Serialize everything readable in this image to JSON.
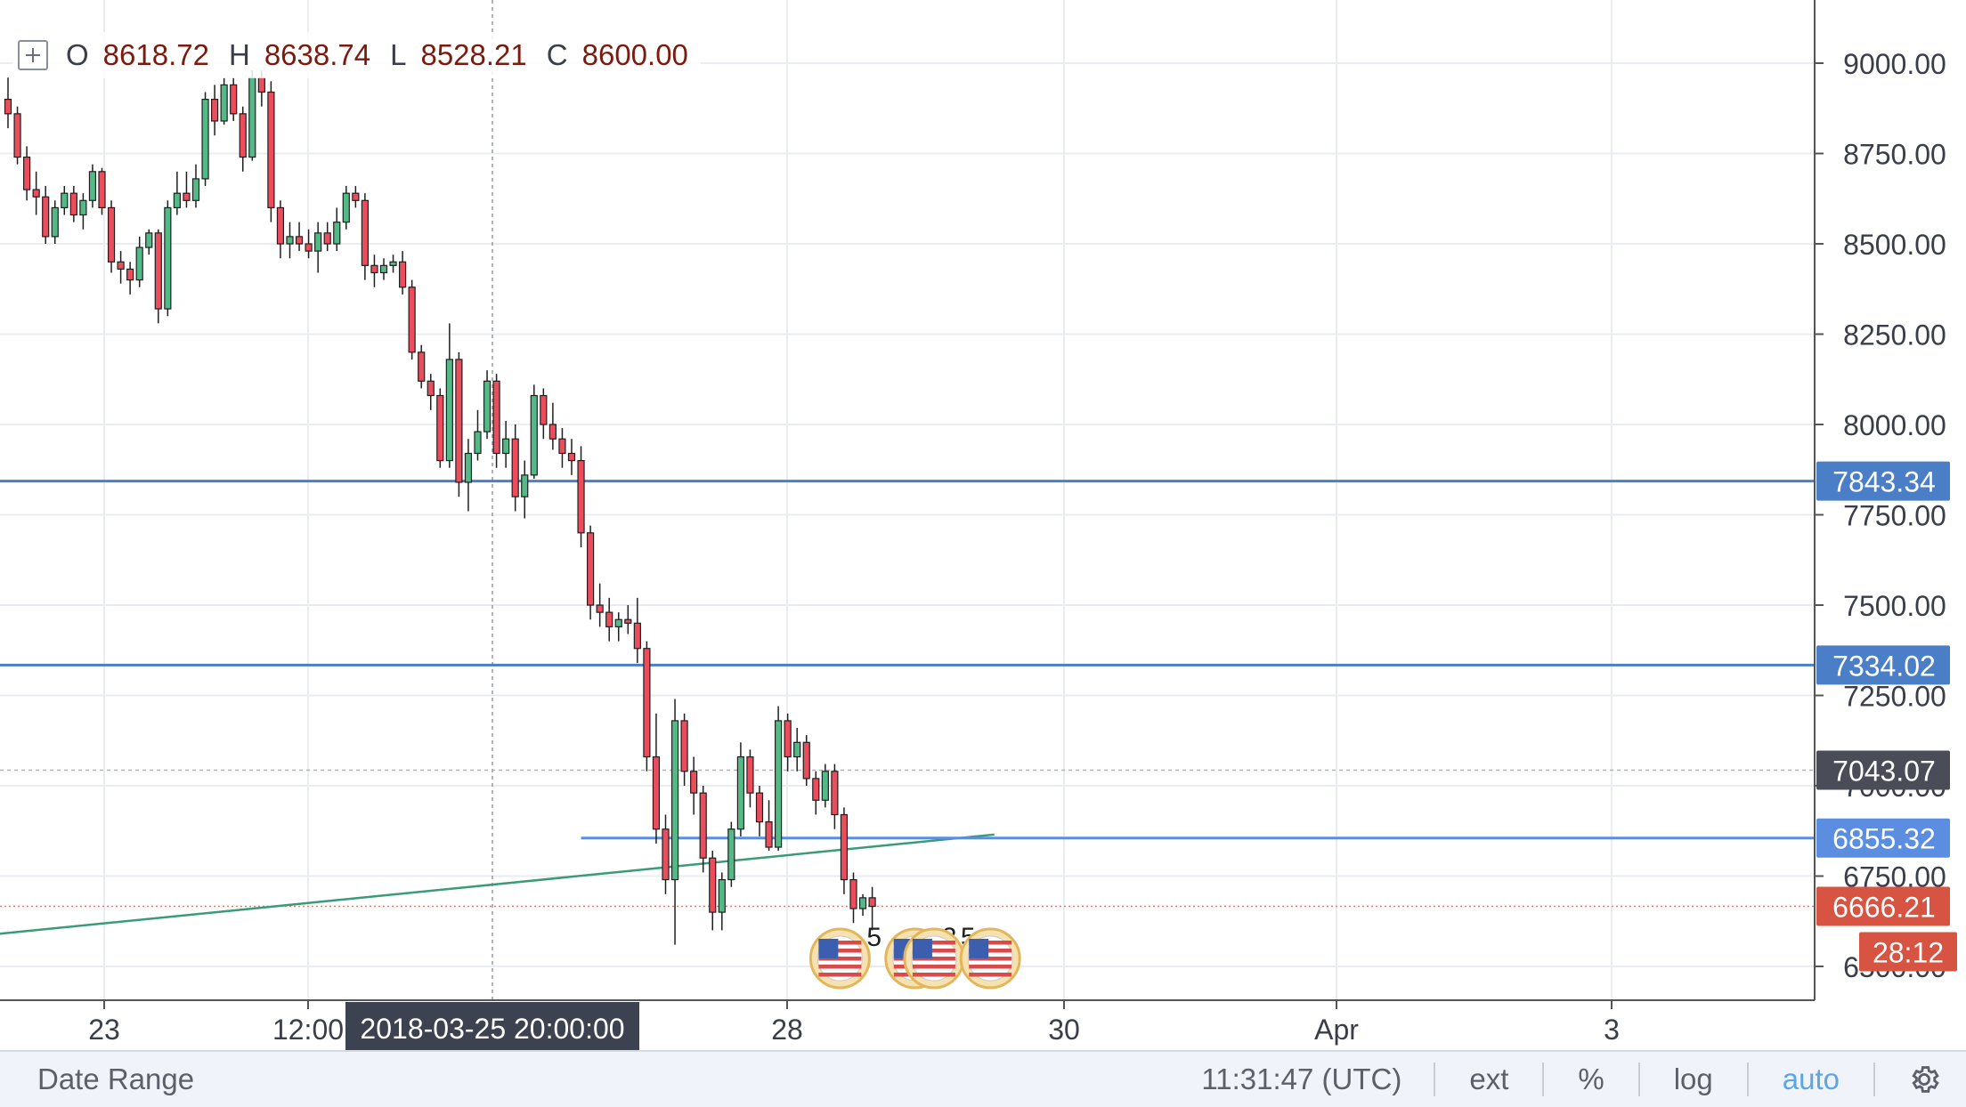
{
  "ohlc": {
    "o_label": "O",
    "o_value": "8618.72",
    "h_label": "H",
    "h_value": "8638.74",
    "l_label": "L",
    "l_value": "8528.21",
    "c_label": "C",
    "c_value": "8600.00"
  },
  "toolbar": {
    "date_range": "Date Range",
    "clock": "11:31:47 (UTC)",
    "ext": "ext",
    "percent": "%",
    "log": "log",
    "auto": "auto",
    "settings_icon": "gear-icon"
  },
  "colors": {
    "up": "#53b987",
    "down": "#eb4d5c",
    "candle_border": "#1f1f1f",
    "hline": "#4a7ec7",
    "trendline": "#3a9b76",
    "price_tag": "#d75442",
    "cursor_tag": "#3d4250"
  },
  "chart_data": {
    "type": "candlestick",
    "title": "",
    "xlabel": "",
    "ylabel": "",
    "ylim": [
      6500,
      9150
    ],
    "x_ticks": [
      "23",
      "12:00",
      "28",
      "30",
      "Apr",
      "3"
    ],
    "y_ticks": [
      "9000.00",
      "8750.00",
      "8500.00",
      "8250.00",
      "8000.00",
      "7750.00",
      "7500.00",
      "7250.00",
      "7000.00",
      "6750.00",
      "6500.00"
    ],
    "cursor_time_label": "2018-03-25 20:00:00",
    "current_price": "6666.21",
    "countdown": "28:12",
    "horizontal_lines": [
      {
        "value": 7843.34,
        "label": "7843.34",
        "color": "#4a7ec7"
      },
      {
        "value": 7334.02,
        "label": "7334.02",
        "color": "#4a7ec7"
      },
      {
        "value": 6855.32,
        "label": "6855.32",
        "color": "#5b8ee0",
        "starts_at_candle": 61
      }
    ],
    "crosshair_price": {
      "value": 7043.07,
      "label": "7043.07"
    },
    "trendline": {
      "from": {
        "candle": -1,
        "value": 6590
      },
      "to": {
        "candle": 105,
        "value": 6865
      }
    },
    "event_markers": [
      {
        "candle": 88,
        "count": "5"
      },
      {
        "candle": 96,
        "count": "2"
      },
      {
        "candle": 98,
        "count": "5"
      },
      {
        "candle": 104,
        "count": ""
      }
    ],
    "candles": [
      [
        8900,
        8960,
        8820,
        8860
      ],
      [
        8860,
        8880,
        8720,
        8740
      ],
      [
        8740,
        8770,
        8620,
        8650
      ],
      [
        8650,
        8700,
        8580,
        8630
      ],
      [
        8630,
        8660,
        8500,
        8520
      ],
      [
        8520,
        8620,
        8500,
        8600
      ],
      [
        8600,
        8660,
        8580,
        8640
      ],
      [
        8640,
        8660,
        8560,
        8580
      ],
      [
        8580,
        8640,
        8540,
        8620
      ],
      [
        8620,
        8720,
        8600,
        8700
      ],
      [
        8700,
        8710,
        8580,
        8600
      ],
      [
        8600,
        8620,
        8420,
        8450
      ],
      [
        8450,
        8480,
        8390,
        8430
      ],
      [
        8430,
        8450,
        8360,
        8400
      ],
      [
        8400,
        8520,
        8380,
        8490
      ],
      [
        8490,
        8540,
        8470,
        8530
      ],
      [
        8530,
        8540,
        8280,
        8320
      ],
      [
        8320,
        8620,
        8300,
        8600
      ],
      [
        8600,
        8700,
        8580,
        8640
      ],
      [
        8640,
        8700,
        8600,
        8620
      ],
      [
        8620,
        8720,
        8600,
        8680
      ],
      [
        8680,
        8920,
        8660,
        8900
      ],
      [
        8900,
        8940,
        8800,
        8840
      ],
      [
        8840,
        8960,
        8830,
        8940
      ],
      [
        8940,
        8960,
        8840,
        8860
      ],
      [
        8860,
        8880,
        8700,
        8740
      ],
      [
        8740,
        8980,
        8730,
        8960
      ],
      [
        8960,
        8980,
        8880,
        8920
      ],
      [
        8920,
        8950,
        8560,
        8600
      ],
      [
        8600,
        8620,
        8460,
        8500
      ],
      [
        8500,
        8560,
        8460,
        8520
      ],
      [
        8520,
        8560,
        8480,
        8500
      ],
      [
        8500,
        8540,
        8460,
        8480
      ],
      [
        8480,
        8560,
        8420,
        8530
      ],
      [
        8530,
        8560,
        8480,
        8500
      ],
      [
        8500,
        8600,
        8480,
        8560
      ],
      [
        8560,
        8660,
        8540,
        8640
      ],
      [
        8640,
        8660,
        8600,
        8620
      ],
      [
        8620,
        8640,
        8400,
        8440
      ],
      [
        8440,
        8470,
        8380,
        8420
      ],
      [
        8420,
        8460,
        8400,
        8440
      ],
      [
        8440,
        8470,
        8420,
        8450
      ],
      [
        8450,
        8480,
        8360,
        8380
      ],
      [
        8380,
        8400,
        8180,
        8200
      ],
      [
        8200,
        8220,
        8100,
        8120
      ],
      [
        8120,
        8140,
        8040,
        8080
      ],
      [
        8080,
        8100,
        7880,
        7900
      ],
      [
        7900,
        8280,
        7880,
        8180
      ],
      [
        8180,
        8200,
        7800,
        7840
      ],
      [
        7840,
        7960,
        7760,
        7920
      ],
      [
        7920,
        8040,
        7900,
        7980
      ],
      [
        7980,
        8150,
        7960,
        8120
      ],
      [
        8120,
        8140,
        7880,
        7920
      ],
      [
        7920,
        8010,
        7880,
        7960
      ],
      [
        7960,
        8000,
        7760,
        7800
      ],
      [
        7800,
        7900,
        7740,
        7860
      ],
      [
        7860,
        8110,
        7850,
        8080
      ],
      [
        8080,
        8100,
        7960,
        8000
      ],
      [
        8000,
        8060,
        7930,
        7960
      ],
      [
        7960,
        7990,
        7880,
        7920
      ],
      [
        7920,
        7960,
        7860,
        7900
      ],
      [
        7900,
        7940,
        7660,
        7700
      ],
      [
        7700,
        7720,
        7460,
        7500
      ],
      [
        7500,
        7560,
        7440,
        7480
      ],
      [
        7480,
        7520,
        7400,
        7440
      ],
      [
        7440,
        7480,
        7400,
        7460
      ],
      [
        7460,
        7500,
        7420,
        7450
      ],
      [
        7450,
        7520,
        7340,
        7380
      ],
      [
        7380,
        7400,
        7040,
        7080
      ],
      [
        7080,
        7200,
        6840,
        6880
      ],
      [
        6880,
        6920,
        6700,
        6740
      ],
      [
        6740,
        7240,
        6560,
        7180
      ],
      [
        7180,
        7200,
        7000,
        7040
      ],
      [
        7040,
        7080,
        6920,
        6980
      ],
      [
        6980,
        7000,
        6760,
        6800
      ],
      [
        6800,
        6820,
        6600,
        6650
      ],
      [
        6650,
        6760,
        6600,
        6740
      ],
      [
        6740,
        6900,
        6720,
        6880
      ],
      [
        6880,
        7120,
        6860,
        7080
      ],
      [
        7080,
        7100,
        6940,
        6980
      ],
      [
        6980,
        7000,
        6860,
        6900
      ],
      [
        6900,
        6960,
        6820,
        6830
      ],
      [
        6830,
        7220,
        6820,
        7180
      ],
      [
        7180,
        7200,
        7040,
        7080
      ],
      [
        7080,
        7160,
        7040,
        7120
      ],
      [
        7120,
        7140,
        7000,
        7020
      ],
      [
        7020,
        7040,
        6920,
        6960
      ],
      [
        6960,
        7060,
        6940,
        7040
      ],
      [
        7040,
        7060,
        6880,
        6920
      ],
      [
        6920,
        6940,
        6700,
        6740
      ],
      [
        6740,
        6760,
        6620,
        6660
      ],
      [
        6660,
        6700,
        6640,
        6690
      ],
      [
        6690,
        6720,
        6600,
        6666.21
      ]
    ]
  }
}
